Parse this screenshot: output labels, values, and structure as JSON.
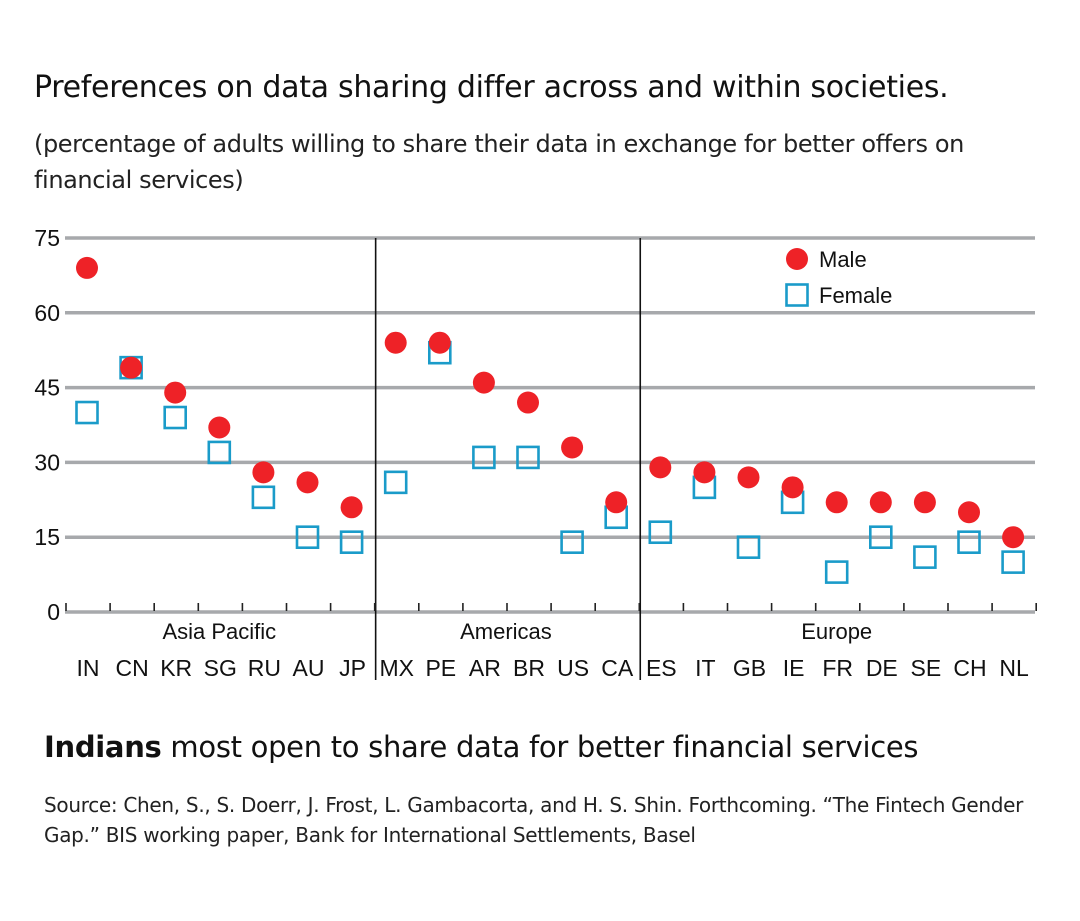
{
  "chart_data": {
    "type": "scatter",
    "title": "Preferences on data sharing differ across and within societies.",
    "subtitle": "(percentage of adults willing to share their data in exchange for better offers on financial services)",
    "xlabel": "",
    "ylabel": "",
    "ylim": [
      0,
      75
    ],
    "yticks": [
      0,
      15,
      30,
      45,
      60,
      75
    ],
    "grid": true,
    "legend_position": "top-right",
    "categories": [
      "IN",
      "CN",
      "KR",
      "SG",
      "RU",
      "AU",
      "JP",
      "MX",
      "PE",
      "AR",
      "BR",
      "US",
      "CA",
      "ES",
      "IT",
      "GB",
      "IE",
      "FR",
      "DE",
      "SE",
      "CH",
      "NL"
    ],
    "groups": [
      {
        "name": "Asia Pacific",
        "categories": [
          "IN",
          "CN",
          "KR",
          "SG",
          "RU",
          "AU",
          "JP"
        ]
      },
      {
        "name": "Americas",
        "categories": [
          "MX",
          "PE",
          "AR",
          "BR",
          "US",
          "CA"
        ]
      },
      {
        "name": "Europe",
        "categories": [
          "ES",
          "IT",
          "GB",
          "IE",
          "FR",
          "DE",
          "SE",
          "CH",
          "NL"
        ]
      }
    ],
    "series": [
      {
        "name": "Male",
        "marker": "filled-circle",
        "color": "#ee2227",
        "values": [
          69,
          49,
          44,
          37,
          28,
          26,
          21,
          54,
          54,
          46,
          42,
          33,
          22,
          29,
          28,
          27,
          25,
          22,
          22,
          22,
          20,
          15
        ]
      },
      {
        "name": "Female",
        "marker": "hollow-square",
        "color": "#1a9bc9",
        "values": [
          40,
          49,
          39,
          32,
          23,
          15,
          14,
          26,
          52,
          31,
          31,
          14,
          19,
          16,
          25,
          13,
          22,
          8,
          15,
          11,
          14,
          10
        ]
      }
    ]
  },
  "headline": {
    "bold": "Indians",
    "rest": " most open to share data for better financial services"
  },
  "source": "Source: Chen, S., S. Doerr, J. Frost, L. Gambacorta, and H. S. Shin. Forthcoming. “The Fintech Gender Gap.” BIS working paper, Bank for International Settlements, Basel",
  "colors": {
    "grid": "#a7a9ac",
    "male": "#ee2227",
    "female": "#1a9bc9",
    "divider": "#111111"
  }
}
